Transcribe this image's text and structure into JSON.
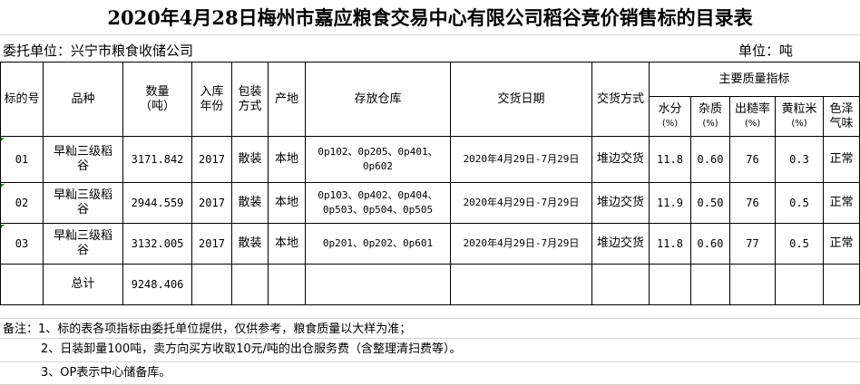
{
  "title": "2020年4月28日梅州市嘉应粮食交易中心有限公司稻谷竞价销售标的目录表",
  "consignor": "委托单位：兴宁市粮食收储公司",
  "unit": "单位：吨",
  "headers": {
    "lot": "标的号",
    "variety": "品种",
    "qty": "数量",
    "qty_unit": "（吨）",
    "year1": "入库",
    "year2": "年份",
    "pack1": "包装",
    "pack2": "方式",
    "origin": "产地",
    "warehouse": "存放仓库",
    "date": "交货日期",
    "delivery": "交货方式",
    "quality": "主要质量指标",
    "q": [
      {
        "a": "水分",
        "b": "(%)"
      },
      {
        "a": "杂质",
        "b": "(%)"
      },
      {
        "a": "出糙率",
        "b": "(%)"
      },
      {
        "a": "黄粒米",
        "b": "(%)"
      },
      {
        "a": "色泽",
        "b": "气味"
      }
    ]
  },
  "rows": [
    {
      "lot": "01",
      "variety": "早籼三级稻谷",
      "qty": "3171.842",
      "year": "2017",
      "pack": "散装",
      "origin": "本地",
      "warehouse": "0p102、0p205、0p401、0p602",
      "date": "2020年4月29日-7月29日",
      "delivery": "堆边交货",
      "moisture": "11.8",
      "impurity": "0.60",
      "yield": "76",
      "yellow": "0.3",
      "color": "正常"
    },
    {
      "lot": "02",
      "variety": "早籼三级稻谷",
      "qty": "2944.559",
      "year": "2017",
      "pack": "散装",
      "origin": "本地",
      "warehouse": "0p103、0p402、0p404、0p503、0p504、0p505",
      "date": "2020年4月29日-7月29日",
      "delivery": "堆边交货",
      "moisture": "11.9",
      "impurity": "0.50",
      "yield": "76",
      "yellow": "0.5",
      "color": "正常"
    },
    {
      "lot": "03",
      "variety": "早籼三级稻谷",
      "qty": "3132.005",
      "year": "2017",
      "pack": "散装",
      "origin": "本地",
      "warehouse": "0p201、0p202、0p601",
      "date": "2020年4月29日-7月29日",
      "delivery": "堆边交货",
      "moisture": "11.8",
      "impurity": "0.60",
      "yield": "77",
      "yellow": "0.5",
      "color": "正常"
    }
  ],
  "total": {
    "label": "总计",
    "qty": "9248.406"
  },
  "notes": [
    "备注：1、标的表各项指标由委托单位提供，仅供参考，粮食质量以大样为准；",
    "2、日装卸量100吨，卖方向买方收取10元/吨的出仓服务费（含整理清扫费等）。",
    "3、OP表示中心储备库。"
  ]
}
